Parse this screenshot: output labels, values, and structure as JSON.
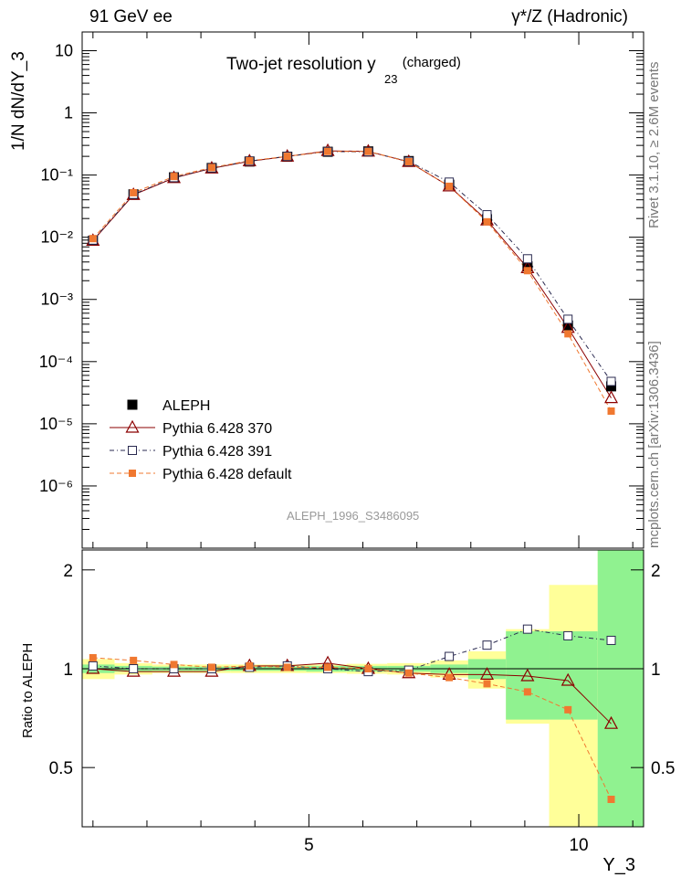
{
  "header": {
    "left": "91 GeV ee",
    "right": "γ*/Z (Hadronic)"
  },
  "side_labels": {
    "top": "Rivet 3.1.10, ≥ 2.6M events",
    "bottom": "mcplots.cern.ch [arXiv:1306.3436]"
  },
  "colors": {
    "aleph": "#000000",
    "p370": "#8b0000",
    "p391": "#2a2a50",
    "pdefault": "#f07830",
    "band_green": "#90f290",
    "band_yellow": "#ffff99"
  },
  "chart_data": [
    {
      "type": "line",
      "title": "Two-jet resolution y",
      "title_sub": "23",
      "title_suffix": "(charged)",
      "ylabel": "1/N dN/dY_3",
      "watermark": "ALEPH_1996_S3486095",
      "yscale": "log",
      "ylim": [
        1e-07,
        20
      ],
      "xlim": [
        0.8,
        11.2
      ],
      "y_tick_labels": [
        "10",
        "1",
        "10⁻¹",
        "10⁻²",
        "10⁻³",
        "10⁻⁴",
        "10⁻⁵",
        "10⁻⁶"
      ],
      "x": [
        1.0,
        1.75,
        2.5,
        3.2,
        3.9,
        4.6,
        5.35,
        6.1,
        6.85,
        7.6,
        8.3,
        9.05,
        9.8,
        10.6
      ],
      "legend_position": "bottom-left",
      "series": [
        {
          "name": "ALEPH",
          "style": "data",
          "values": [
            0.0088,
            0.049,
            0.092,
            0.13,
            0.165,
            0.197,
            0.237,
            0.24,
            0.168,
            0.07,
            0.0195,
            0.0034,
            0.00038,
            4e-05
          ]
        },
        {
          "name": "Pythia 6.428 370",
          "style": "solid-triangle",
          "values": [
            0.0088,
            0.048,
            0.09,
            0.128,
            0.167,
            0.199,
            0.245,
            0.24,
            0.163,
            0.066,
            0.0187,
            0.0032,
            0.00035,
            2.6e-05
          ]
        },
        {
          "name": "Pythia 6.428 391",
          "style": "dashdot-square",
          "values": [
            0.009,
            0.049,
            0.091,
            0.13,
            0.168,
            0.2,
            0.238,
            0.237,
            0.166,
            0.077,
            0.023,
            0.0045,
            0.00048,
            4.8e-05
          ]
        },
        {
          "name": "Pythia 6.428 default",
          "style": "dashed-filled",
          "values": [
            0.0095,
            0.052,
            0.095,
            0.132,
            0.17,
            0.2,
            0.24,
            0.24,
            0.164,
            0.066,
            0.0177,
            0.0029,
            0.00028,
            1.6e-05
          ]
        }
      ]
    },
    {
      "type": "line",
      "ylabel": "Ratio to ALEPH",
      "xlabel": "Y_3",
      "ylim": [
        0.33,
        2.3
      ],
      "y_ticks": [
        0.5,
        1,
        2
      ],
      "y_tick_labels": [
        "0.5",
        "1",
        "2"
      ],
      "xlim": [
        0.8,
        11.2
      ],
      "x_ticks": [
        5,
        10
      ],
      "x_tick_labels": [
        "5",
        "10"
      ],
      "x": [
        1.0,
        1.75,
        2.5,
        3.2,
        3.9,
        4.6,
        5.35,
        6.1,
        6.85,
        7.6,
        8.3,
        9.05,
        9.8,
        10.6
      ],
      "band_edges": [
        0.8,
        1.4,
        2.1,
        2.85,
        3.55,
        4.25,
        4.95,
        5.7,
        6.45,
        7.25,
        7.95,
        8.65,
        9.45,
        10.35,
        11.2
      ],
      "band_green_half": [
        0.03,
        0.02,
        0.015,
        0.015,
        0.015,
        0.015,
        0.02,
        0.02,
        0.02,
        0.03,
        0.07,
        0.3,
        0.3,
        1.5
      ],
      "band_yellow_half": [
        0.07,
        0.04,
        0.03,
        0.03,
        0.03,
        0.03,
        0.03,
        0.035,
        0.04,
        0.06,
        0.13,
        0.32,
        0.8,
        1.5
      ],
      "series": [
        {
          "name": "Pythia 6.428 370",
          "values": [
            1.0,
            0.98,
            0.98,
            0.98,
            1.02,
            1.02,
            1.04,
            1.0,
            0.97,
            0.96,
            0.96,
            0.95,
            0.92,
            0.68
          ]
        },
        {
          "name": "Pythia 6.428 391",
          "values": [
            1.02,
            1.0,
            1.0,
            1.0,
            1.01,
            1.02,
            1.0,
            0.98,
            0.99,
            1.09,
            1.18,
            1.32,
            1.26,
            1.22
          ]
        },
        {
          "name": "Pythia 6.428 default",
          "values": [
            1.08,
            1.06,
            1.03,
            1.01,
            1.02,
            1.01,
            1.01,
            1.0,
            0.97,
            0.94,
            0.9,
            0.85,
            0.75,
            0.4
          ]
        }
      ]
    }
  ]
}
